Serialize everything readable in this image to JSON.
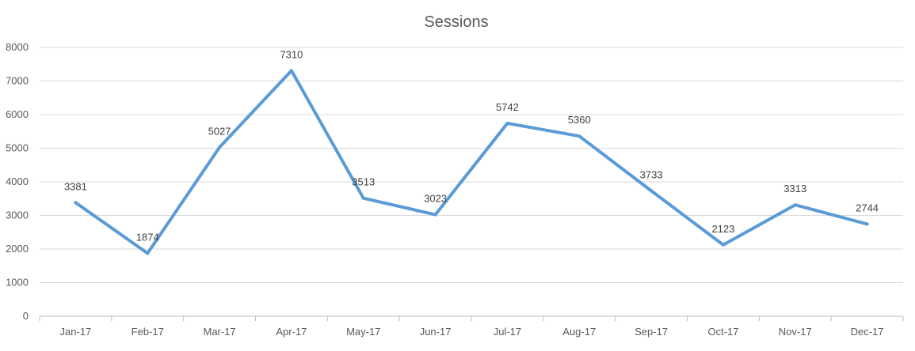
{
  "chart_data": {
    "type": "line",
    "title": "Sessions",
    "xlabel": "",
    "ylabel": "",
    "categories": [
      "Jan-17",
      "Feb-17",
      "Mar-17",
      "Apr-17",
      "May-17",
      "Jun-17",
      "Jul-17",
      "Aug-17",
      "Sep-17",
      "Oct-17",
      "Nov-17",
      "Dec-17"
    ],
    "series": [
      {
        "values": [
          3381,
          1874,
          5027,
          7310,
          3513,
          3023,
          5742,
          5360,
          3733,
          2123,
          3313,
          2744
        ],
        "color": "#5B9BD5"
      }
    ],
    "ylim": [
      0,
      8000
    ],
    "yticks": [
      0,
      1000,
      2000,
      3000,
      4000,
      5000,
      6000,
      7000,
      8000
    ],
    "grid": true,
    "legend": "none",
    "data_labels": true,
    "colors": {
      "line": "#5B9BD5",
      "grid": "#D9D9D9",
      "axis": "#BFBFBF",
      "text": "#595959"
    }
  }
}
